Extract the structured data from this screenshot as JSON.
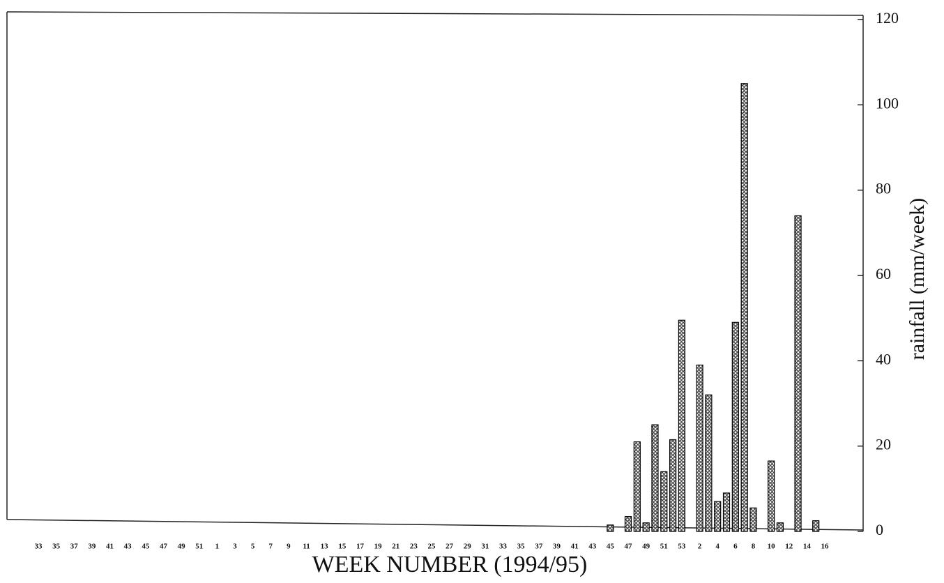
{
  "chart_data": {
    "type": "bar",
    "x_label": "WEEK NUMBER (1994/95)",
    "y_label": "rainfall (mm/week)",
    "categories": [
      "33",
      null,
      "35",
      null,
      "37",
      null,
      "39",
      null,
      "41",
      null,
      "43",
      null,
      "45",
      null,
      "47",
      null,
      "49",
      null,
      "51",
      null,
      "1",
      null,
      "3",
      null,
      "5",
      null,
      "7",
      null,
      "9",
      null,
      "11",
      null,
      "13",
      null,
      "15",
      null,
      "17",
      null,
      "19",
      null,
      "21",
      null,
      "23",
      null,
      "25",
      null,
      "27",
      null,
      "29",
      null,
      "31",
      null,
      "33",
      null,
      "35",
      null,
      "37",
      null,
      "39",
      null,
      "41",
      null,
      "43",
      null,
      "45",
      null,
      "47",
      null,
      "49",
      null,
      "51",
      null,
      "53",
      null,
      "2",
      null,
      "4",
      null,
      "6",
      null,
      "8",
      null,
      "10",
      null,
      "12",
      null,
      "14",
      null,
      "16"
    ],
    "values": [
      0,
      0,
      0,
      0,
      0,
      0,
      0,
      0,
      0,
      0,
      0,
      0,
      0,
      0,
      0,
      0,
      0,
      0,
      0,
      0,
      0,
      0,
      0,
      0,
      0,
      0,
      0,
      0,
      0,
      0,
      0,
      0,
      0,
      0,
      0,
      0,
      0,
      0,
      0,
      0,
      0,
      0,
      0,
      0,
      0,
      0,
      0,
      0,
      0,
      0,
      0,
      0,
      0,
      0,
      0,
      0,
      0,
      0,
      0,
      0,
      0,
      0,
      0,
      0,
      1.5,
      0,
      3.5,
      21,
      2,
      25,
      14,
      21.5,
      49.5,
      0,
      39,
      32,
      7,
      9,
      49,
      105,
      5.5,
      0,
      16.5,
      2,
      0,
      74,
      0,
      2.5,
      0
    ],
    "color": "#000000",
    "ylim": [
      0,
      120
    ],
    "yticks": [
      0,
      20,
      40,
      60,
      80,
      100,
      120
    ]
  }
}
